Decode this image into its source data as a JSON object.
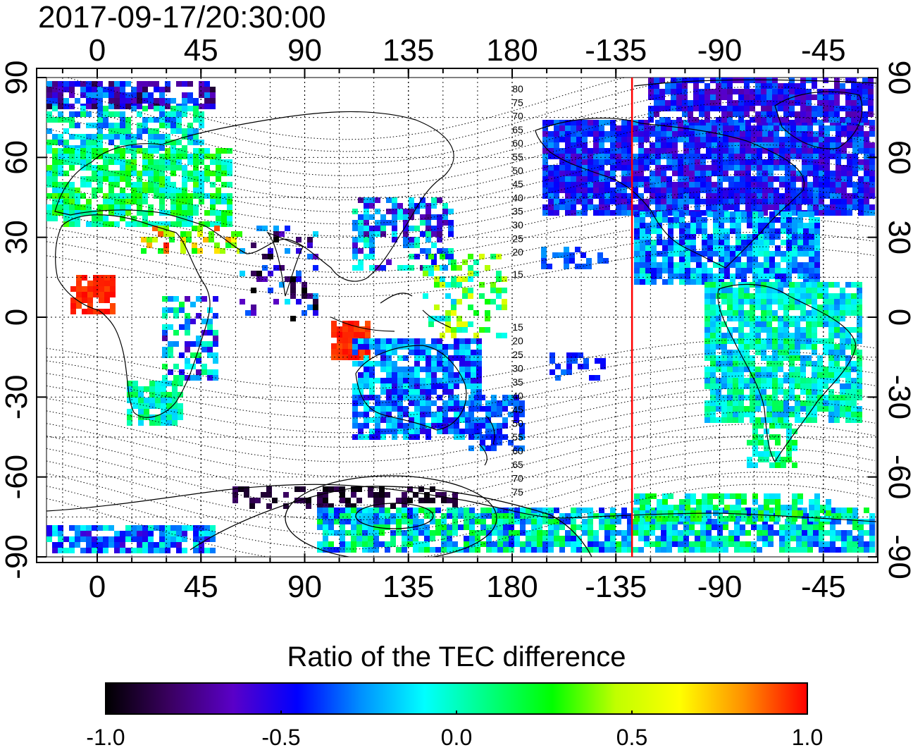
{
  "timestamp": "2017-09-17/20:30:00",
  "colorbar": {
    "title": "Ratio of the TEC difference",
    "min": -1.0,
    "max": 1.0,
    "tick_labels": [
      "-1.0",
      "-0.5",
      "0.0",
      "0.5",
      "1.0"
    ],
    "colors": [
      "#000000",
      "#3a0060",
      "#5a00c8",
      "#0000ff",
      "#0090ff",
      "#00ffff",
      "#00ff80",
      "#00ff00",
      "#c0ff00",
      "#ffff00",
      "#ff9000",
      "#ff0000"
    ]
  },
  "map": {
    "longitude_ticks": [
      "0",
      "45",
      "90",
      "135",
      "180",
      "-135",
      "-90",
      "-45"
    ],
    "latitude_ticks": [
      "90",
      "60",
      "30",
      "0",
      "-30",
      "-60",
      "-90"
    ],
    "magnetic_latitude_labels_north": [
      "80",
      "75",
      "70",
      "65",
      "60",
      "55",
      "50",
      "45",
      "40",
      "35",
      "30",
      "25",
      "20",
      "15"
    ],
    "magnetic_latitude_labels_south": [
      "15",
      "20",
      "25",
      "30",
      "35",
      "40",
      "45",
      "50",
      "55",
      "60",
      "65",
      "70",
      "75"
    ],
    "terminator_longitude": -128,
    "terminator_color": "#ff0000",
    "land_outline_color": "#000000",
    "grid_color": "#000000"
  }
}
